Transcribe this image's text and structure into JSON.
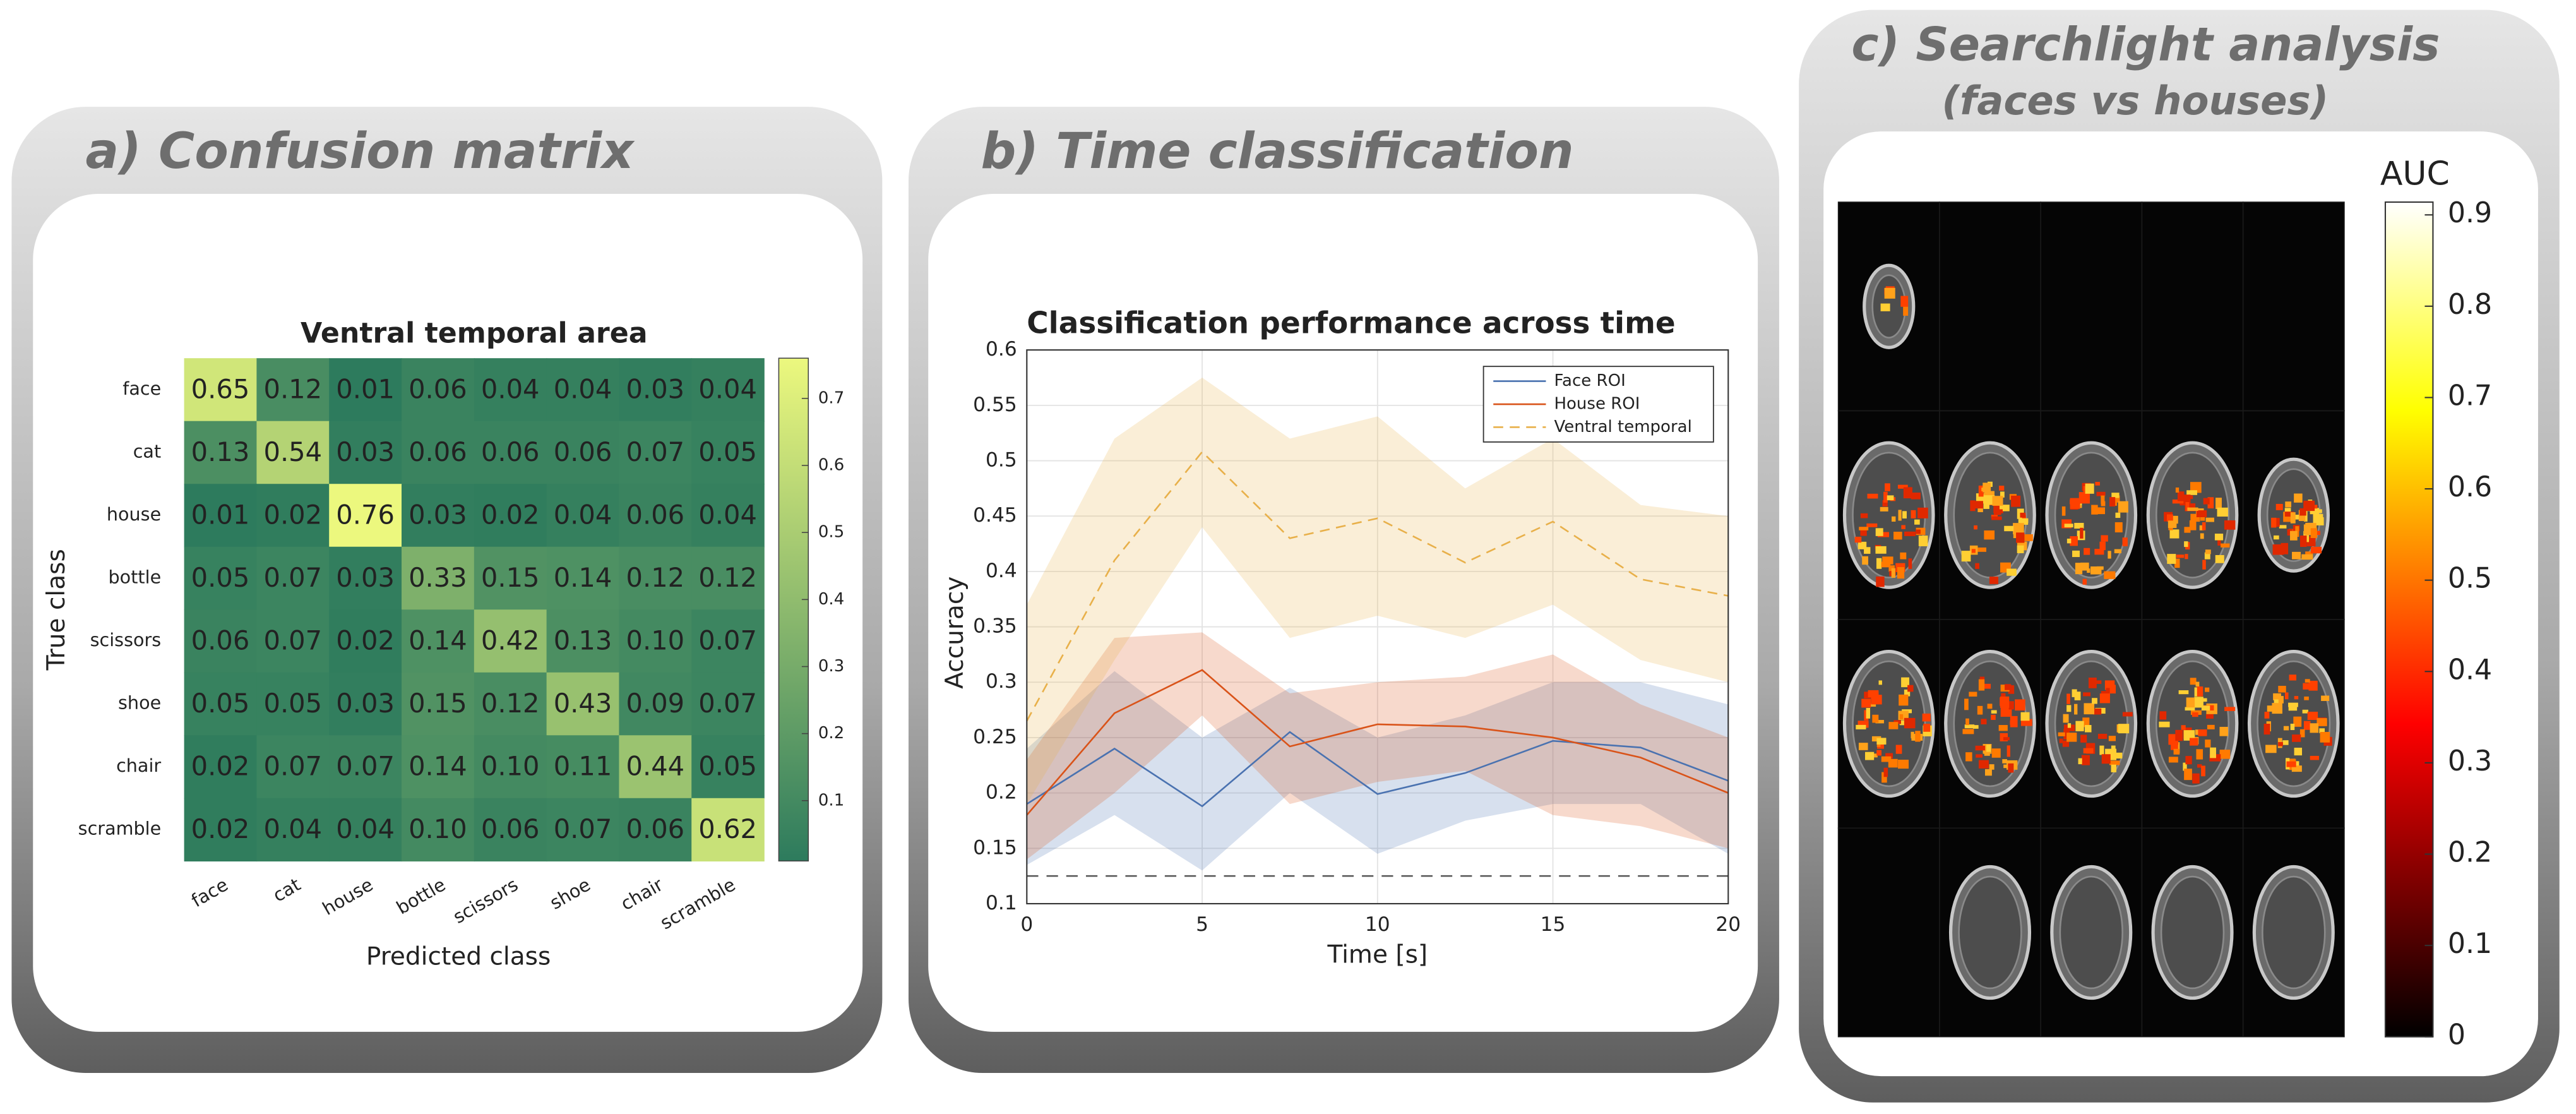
{
  "chart_data": [
    {
      "type": "heatmap",
      "panel_title": "a) Confusion matrix",
      "title": "Ventral temporal area",
      "x_label": "Predicted class",
      "y_label": "True class",
      "categories": [
        "face",
        "cat",
        "house",
        "bottle",
        "scissors",
        "shoe",
        "chair",
        "scramble"
      ],
      "values": [
        [
          0.65,
          0.12,
          0.01,
          0.06,
          0.04,
          0.04,
          0.03,
          0.04
        ],
        [
          0.13,
          0.54,
          0.03,
          0.06,
          0.06,
          0.06,
          0.07,
          0.05
        ],
        [
          0.01,
          0.02,
          0.76,
          0.03,
          0.02,
          0.04,
          0.06,
          0.04
        ],
        [
          0.05,
          0.07,
          0.03,
          0.33,
          0.15,
          0.14,
          0.12,
          0.12
        ],
        [
          0.06,
          0.07,
          0.02,
          0.14,
          0.42,
          0.13,
          0.1,
          0.07
        ],
        [
          0.05,
          0.05,
          0.03,
          0.15,
          0.12,
          0.43,
          0.09,
          0.07
        ],
        [
          0.02,
          0.07,
          0.07,
          0.14,
          0.1,
          0.11,
          0.44,
          0.05
        ],
        [
          0.02,
          0.04,
          0.04,
          0.1,
          0.06,
          0.07,
          0.06,
          0.62
        ]
      ],
      "value_labels": [
        [
          "0.65",
          "0.12",
          "0.01",
          "0.06",
          "0.04",
          "0.04",
          "0.03",
          "0.04"
        ],
        [
          "0.13",
          "0.54",
          "0.03",
          "0.06",
          "0.06",
          "0.06",
          "0.07",
          "0.05"
        ],
        [
          "0.01",
          "0.02",
          "0.76",
          "0.03",
          "0.02",
          "0.04",
          "0.06",
          "0.04"
        ],
        [
          "0.05",
          "0.07",
          "0.03",
          "0.33",
          "0.15",
          "0.14",
          "0.12",
          "0.12"
        ],
        [
          "0.06",
          "0.07",
          "0.02",
          "0.14",
          "0.42",
          "0.13",
          "0.10",
          "0.07"
        ],
        [
          "0.05",
          "0.05",
          "0.03",
          "0.15",
          "0.12",
          "0.43",
          "0.09",
          "0.07"
        ],
        [
          "0.02",
          "0.07",
          "0.07",
          "0.14",
          "0.10",
          "0.11",
          "0.44",
          "0.05"
        ],
        [
          "0.02",
          "0.04",
          "0.04",
          "0.10",
          "0.06",
          "0.07",
          "0.06",
          "0.62"
        ]
      ],
      "colormap": [
        "#2d7b5d",
        "#ecf87e"
      ],
      "zlim": [
        0.01,
        0.76
      ],
      "zticks": [
        0.1,
        0.2,
        0.3,
        0.4,
        0.5,
        0.6,
        0.7
      ]
    },
    {
      "type": "line",
      "panel_title": "b) Time classification",
      "title": "Classification performance across time",
      "x_label": "Time [s]",
      "y_label": "Accuracy",
      "x": [
        0,
        2.5,
        5,
        7.5,
        10,
        12.5,
        15,
        17.5,
        20
      ],
      "series": [
        {
          "name": "Face ROI",
          "color": "#4a72b0",
          "dash": false,
          "values": [
            0.19,
            0.24,
            0.188,
            0.255,
            0.199,
            0.218,
            0.247,
            0.241,
            0.211
          ],
          "lower": [
            0.135,
            0.18,
            0.13,
            0.2,
            0.145,
            0.175,
            0.19,
            0.19,
            0.145
          ],
          "upper": [
            0.24,
            0.31,
            0.25,
            0.295,
            0.25,
            0.27,
            0.3,
            0.3,
            0.28
          ]
        },
        {
          "name": "House ROI",
          "color": "#d95319",
          "dash": false,
          "values": [
            0.18,
            0.272,
            0.311,
            0.242,
            0.262,
            0.26,
            0.25,
            0.232,
            0.2
          ],
          "lower": [
            0.14,
            0.2,
            0.27,
            0.19,
            0.21,
            0.22,
            0.18,
            0.17,
            0.15
          ],
          "upper": [
            0.23,
            0.34,
            0.345,
            0.29,
            0.3,
            0.305,
            0.325,
            0.28,
            0.25
          ]
        },
        {
          "name": "Ventral temporal",
          "color": "#e8b04a",
          "dash": true,
          "values": [
            0.265,
            0.41,
            0.508,
            0.43,
            0.448,
            0.408,
            0.445,
            0.393,
            0.378
          ],
          "lower": [
            0.19,
            0.32,
            0.44,
            0.34,
            0.36,
            0.34,
            0.37,
            0.32,
            0.3
          ],
          "upper": [
            0.37,
            0.52,
            0.575,
            0.52,
            0.54,
            0.475,
            0.52,
            0.46,
            0.45
          ]
        }
      ],
      "chance": 0.125,
      "xlim": [
        0,
        20
      ],
      "xticks": [
        0,
        5,
        10,
        15,
        20
      ],
      "ylim": [
        0.1,
        0.6
      ],
      "yticks": [
        0.1,
        0.15,
        0.2,
        0.25,
        0.3,
        0.35,
        0.4,
        0.45,
        0.5,
        0.55,
        0.6
      ],
      "grid": true,
      "legend": "top-right"
    },
    {
      "type": "image",
      "panel_title": "c) Searchlight analysis",
      "panel_subtitle": "(faces vs houses)",
      "colorbar_label": "AUC",
      "colormap": "hot",
      "zlim": [
        0,
        0.914
      ],
      "zticks": [
        0,
        0.1,
        0.2,
        0.3,
        0.4,
        0.5,
        0.6,
        0.7,
        0.8,
        0.9
      ]
    }
  ]
}
